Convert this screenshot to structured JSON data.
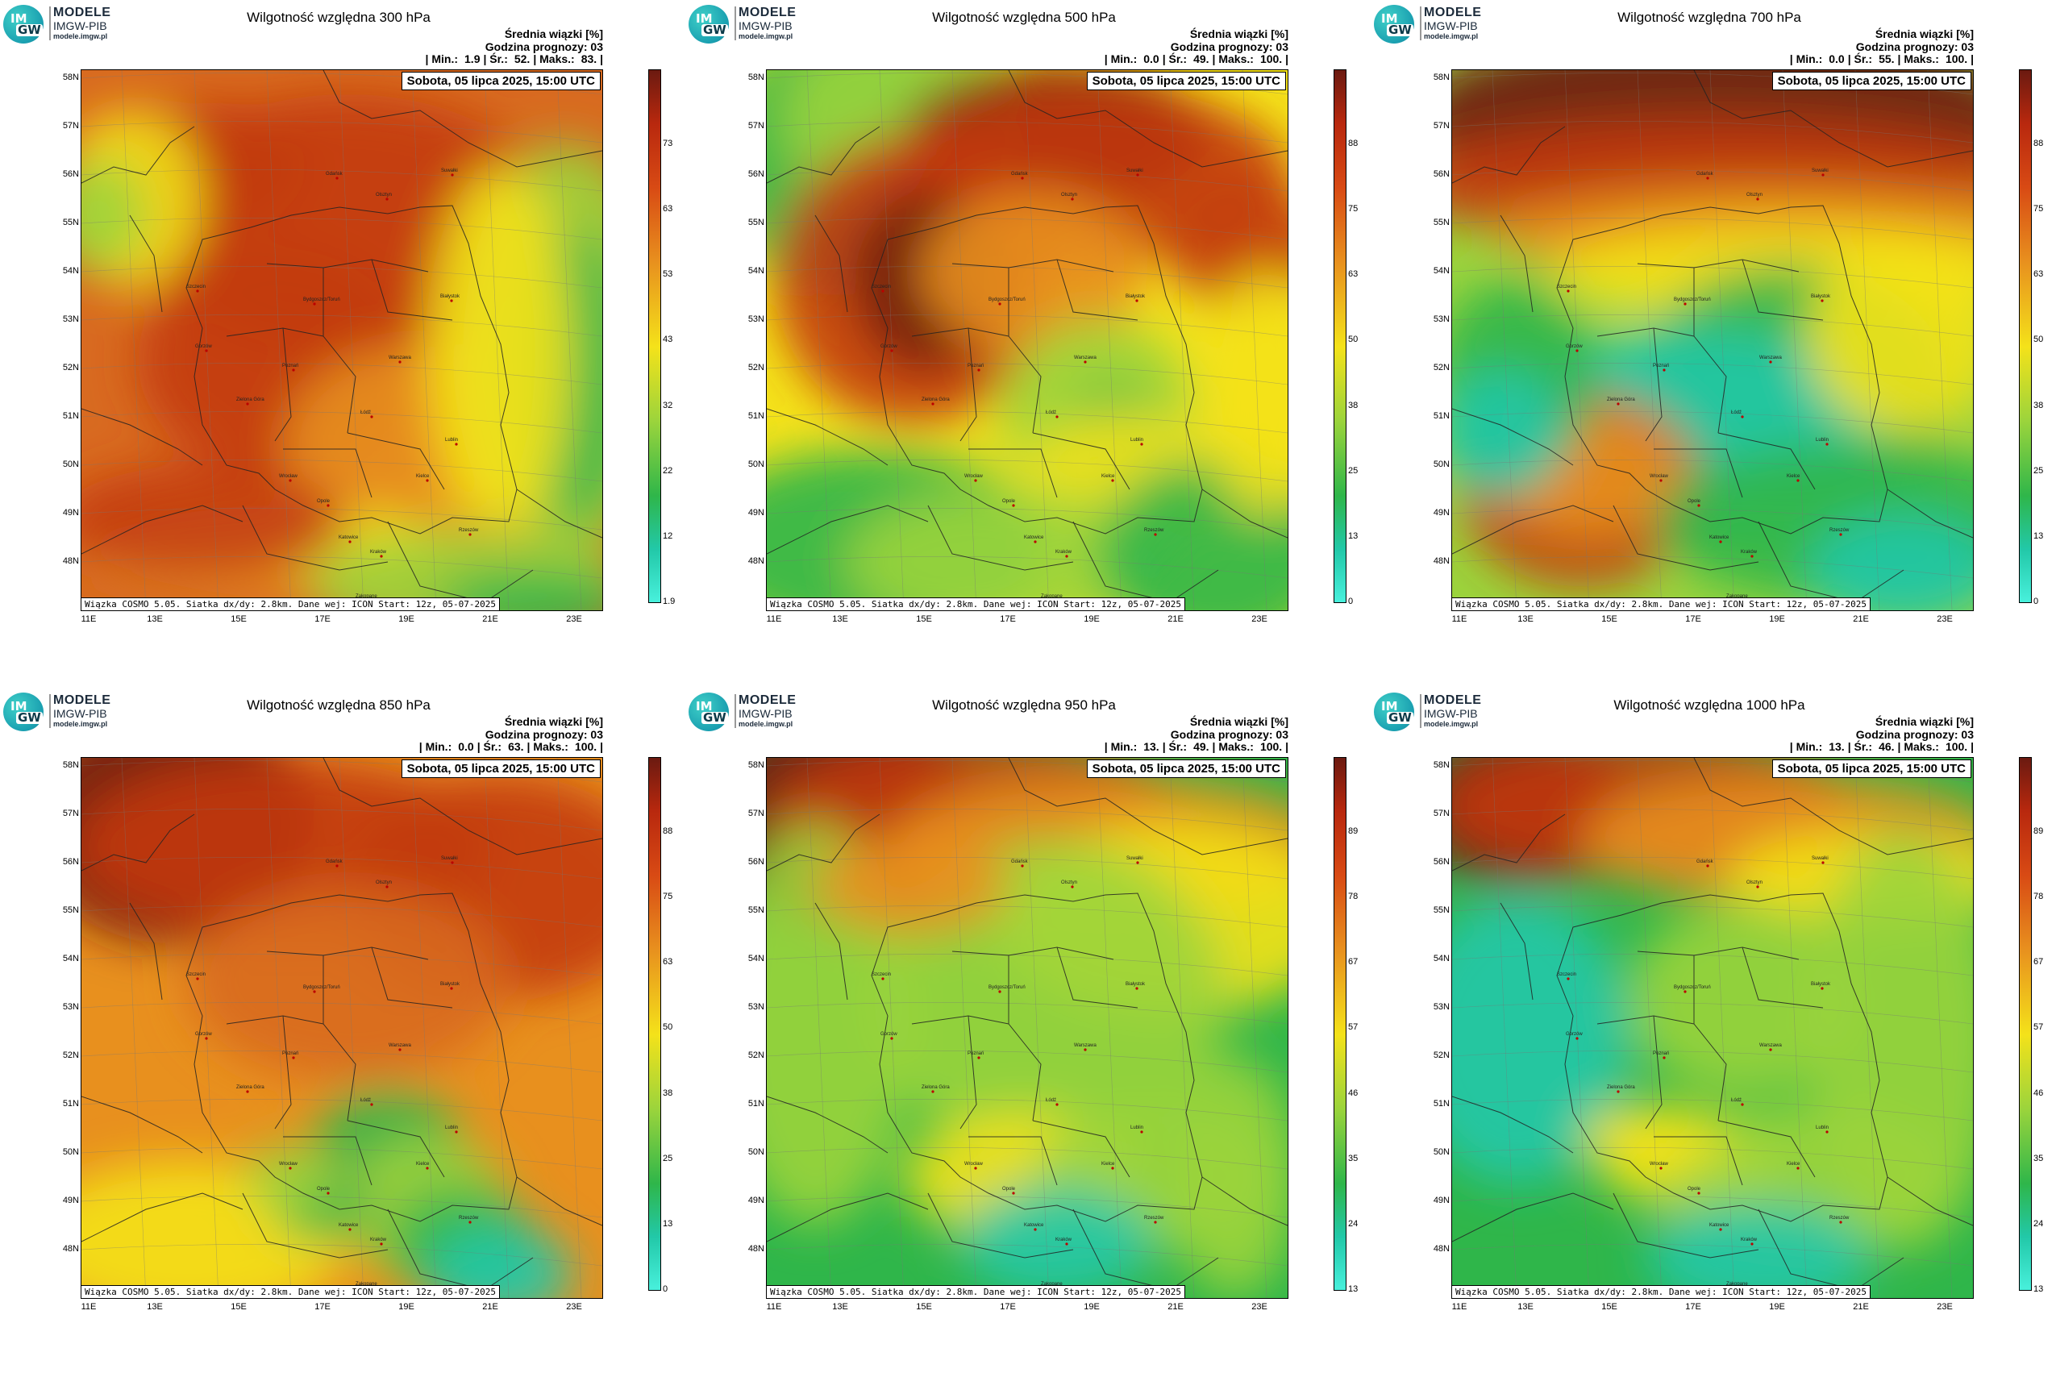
{
  "logo": {
    "line1": "MODELE",
    "line2": "IMGW-PIB",
    "line3": "modele.imgw.pl",
    "mark_top": "IM",
    "mark_bottom": "GW"
  },
  "header": {
    "line1": "Średnia wiązki [%]",
    "line2": "Godzina prognozy: 03"
  },
  "date": "Sobota, 05 lipca 2025, 15:00 UTC",
  "footer": "Wiązka COSMO 5.05. Siatka dx/dy: 2.8km. Dane wej: ICON Start: 12z, 05-07-2025",
  "lat_labels": [
    "58N",
    "57N",
    "56N",
    "55N",
    "54N",
    "53N",
    "52N",
    "51N",
    "50N",
    "49N",
    "48N"
  ],
  "lon_labels": [
    "11E",
    "13E",
    "15E",
    "17E",
    "19E",
    "21E",
    "23E"
  ],
  "cities": [
    "Gdańsk",
    "Olsztyn",
    "Suwałki",
    "Szczecin",
    "Bydgoszcz/Toruń",
    "Białystok",
    "Gorzów",
    "Poznań",
    "Warszawa",
    "Zielona Góra",
    "Łódź",
    "Lublin",
    "Wrocław",
    "Kielce",
    "Opole",
    "Rzeszów",
    "Katowice",
    "Kraków",
    "Zakopane"
  ],
  "colors": {
    "dark_red": "#6b1a10",
    "red": "#c83a12",
    "orange": "#e8901e",
    "yellow": "#f4e21a",
    "light_green": "#9bd43c",
    "green": "#2fb64a",
    "teal": "#22c8a8",
    "cyan": "#48f0dc"
  },
  "panels": [
    {
      "title": "Wilgotność względna 300 hPa",
      "min_label": "| Min.:",
      "min": "1.9",
      "avg_label": "| Śr.:",
      "avg": "52.",
      "max_label": "| Maks.:",
      "max": "83.",
      "colorbar": [
        "73",
        "63",
        "53",
        "43",
        "32",
        "22",
        "12",
        "1.9"
      ]
    },
    {
      "title": "Wilgotność względna 500 hPa",
      "min_label": "| Min.:",
      "min": "0.0",
      "avg_label": "| Śr.:",
      "avg": "49.",
      "max_label": "| Maks.:",
      "max": "100.",
      "colorbar": [
        "88",
        "75",
        "63",
        "50",
        "38",
        "25",
        "13",
        "0"
      ]
    },
    {
      "title": "Wilgotność względna 700 hPa",
      "min_label": "| Min.:",
      "min": "0.0",
      "avg_label": "| Śr.:",
      "avg": "55.",
      "max_label": "| Maks.:",
      "max": "100.",
      "colorbar": [
        "88",
        "75",
        "63",
        "50",
        "38",
        "25",
        "13",
        "0"
      ]
    },
    {
      "title": "Wilgotność względna 850 hPa",
      "min_label": "| Min.:",
      "min": "0.0",
      "avg_label": "| Śr.:",
      "avg": "63.",
      "max_label": "| Maks.:",
      "max": "100.",
      "colorbar": [
        "88",
        "75",
        "63",
        "50",
        "38",
        "25",
        "13",
        "0"
      ]
    },
    {
      "title": "Wilgotność względna 950 hPa",
      "min_label": "| Min.:",
      "min": "13.",
      "avg_label": "| Śr.:",
      "avg": "49.",
      "max_label": "| Maks.:",
      "max": "100.",
      "colorbar": [
        "89",
        "78",
        "67",
        "57",
        "46",
        "35",
        "24",
        "13"
      ]
    },
    {
      "title": "Wilgotność względna 1000 hPa",
      "min_label": "| Min.:",
      "min": "13.",
      "avg_label": "| Śr.:",
      "avg": "46.",
      "max_label": "| Maks.:",
      "max": "100.",
      "colorbar": [
        "89",
        "78",
        "67",
        "57",
        "46",
        "35",
        "24",
        "13"
      ]
    }
  ]
}
